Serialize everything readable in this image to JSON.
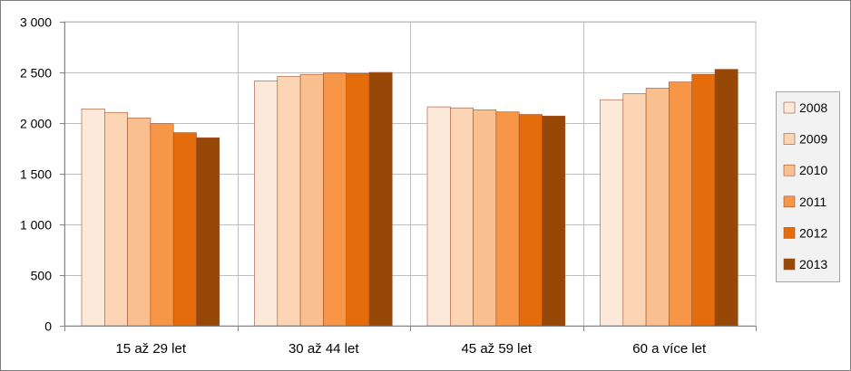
{
  "chart_data": {
    "type": "bar",
    "categories": [
      "15 až 29 let",
      "30 až 44 let",
      "45 až 59 let",
      "60 a více let"
    ],
    "series": [
      {
        "name": "2008",
        "color": "#fde9d9",
        "values": [
          2140,
          2415,
          2160,
          2230
        ]
      },
      {
        "name": "2009",
        "color": "#fcd5b4",
        "values": [
          2105,
          2460,
          2150,
          2290
        ]
      },
      {
        "name": "2010",
        "color": "#fabf8f",
        "values": [
          2050,
          2480,
          2130,
          2345
        ]
      },
      {
        "name": "2011",
        "color": "#f79646",
        "values": [
          1995,
          2495,
          2110,
          2405
        ]
      },
      {
        "name": "2012",
        "color": "#e46c0a",
        "values": [
          1905,
          2490,
          2085,
          2480
        ]
      },
      {
        "name": "2013",
        "color": "#974706",
        "values": [
          1855,
          2500,
          2070,
          2530
        ]
      }
    ],
    "y_ticks": [
      "0",
      "500",
      "1 000",
      "1 500",
      "2 000",
      "2 500",
      "3 000"
    ],
    "ylim": [
      0,
      3000
    ],
    "y_step": 500,
    "grid": true,
    "legend_position": "right",
    "title": "",
    "xlabel": "",
    "ylabel": ""
  }
}
